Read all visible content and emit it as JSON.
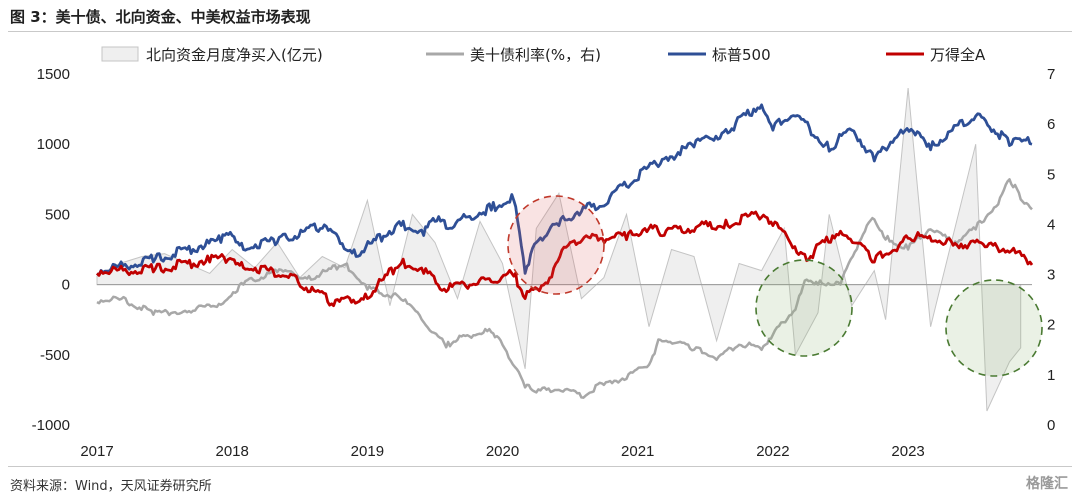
{
  "title": "图 3：美十债、北向资金、中美权益市场表现",
  "source": "资料来源：Wind，天风证券研究所",
  "watermark": "格隆汇",
  "chart_data": {
    "type": "line",
    "legend": {
      "position": "top",
      "items": [
        "北向资金月度净买入(亿元)",
        "美十债利率(%，右)",
        "标普500",
        "万得全A"
      ]
    },
    "x_range": [
      "2017-01",
      "2023-12"
    ],
    "x_ticks": [
      "2017",
      "2018",
      "2019",
      "2020",
      "2021",
      "2022",
      "2023"
    ],
    "y_left": {
      "range": [
        -1000,
        1500
      ],
      "ticks": [
        1500,
        1000,
        500,
        0,
        -500,
        -1000
      ]
    },
    "y_right": {
      "range": [
        0,
        7
      ],
      "ticks": [
        7,
        6,
        5,
        4,
        3,
        2,
        1,
        0
      ]
    },
    "series": [
      {
        "name": "北向资金月度净买入(亿元)",
        "kind": "area",
        "axis": "left",
        "color": "#efefef",
        "stroke": "#c4c4c4",
        "x": [
          "2017-01",
          "2017-03",
          "2017-05",
          "2017-07",
          "2017-09",
          "2017-11",
          "2018-01",
          "2018-03",
          "2018-05",
          "2018-07",
          "2018-09",
          "2018-11",
          "2019-01",
          "2019-03",
          "2019-05",
          "2019-07",
          "2019-09",
          "2019-11",
          "2020-01",
          "2020-03",
          "2020-04",
          "2020-06",
          "2020-08",
          "2020-10",
          "2020-12",
          "2021-02",
          "2021-04",
          "2021-06",
          "2021-08",
          "2021-10",
          "2021-12",
          "2022-02",
          "2022-03",
          "2022-05",
          "2022-06",
          "2022-08",
          "2022-10",
          "2022-11",
          "2023-01",
          "2023-03",
          "2023-05",
          "2023-07",
          "2023-08",
          "2023-10",
          "2023-11"
        ],
        "values": [
          60,
          150,
          200,
          220,
          150,
          80,
          250,
          120,
          300,
          50,
          200,
          120,
          600,
          -150,
          500,
          300,
          -100,
          450,
          150,
          -600,
          400,
          650,
          -100,
          50,
          500,
          -300,
          250,
          200,
          -400,
          150,
          100,
          400,
          -500,
          -200,
          500,
          -150,
          100,
          -250,
          1400,
          -300,
          350,
          1000,
          -900,
          -550,
          -450
        ]
      },
      {
        "name": "美十债利率(%，右)",
        "kind": "line",
        "axis": "right",
        "color": "#a8a8a8",
        "x": [
          "2017-01",
          "2017-03",
          "2017-06",
          "2017-09",
          "2017-12",
          "2018-02",
          "2018-05",
          "2018-08",
          "2018-11",
          "2019-01",
          "2019-04",
          "2019-06",
          "2019-08",
          "2019-09",
          "2019-12",
          "2020-01",
          "2020-03",
          "2020-04",
          "2020-06",
          "2020-08",
          "2020-10",
          "2020-12",
          "2021-02",
          "2021-03",
          "2021-06",
          "2021-08",
          "2021-10",
          "2021-12",
          "2022-01",
          "2022-03",
          "2022-04",
          "2022-05",
          "2022-07",
          "2022-09",
          "2022-10",
          "2022-11",
          "2023-01",
          "2023-03",
          "2023-05",
          "2023-07",
          "2023-09",
          "2023-10",
          "2023-11",
          "2023-12"
        ],
        "values": [
          2.45,
          2.5,
          2.2,
          2.25,
          2.4,
          2.8,
          3.05,
          2.9,
          3.2,
          2.7,
          2.5,
          2.05,
          1.55,
          1.7,
          1.85,
          1.6,
          0.75,
          0.65,
          0.7,
          0.55,
          0.8,
          0.92,
          1.2,
          1.7,
          1.5,
          1.3,
          1.6,
          1.5,
          1.8,
          2.3,
          2.9,
          2.8,
          2.8,
          3.8,
          4.1,
          3.7,
          3.5,
          3.9,
          3.6,
          3.9,
          4.4,
          4.9,
          4.5,
          4.3
        ]
      },
      {
        "name": "标普500",
        "kind": "line",
        "axis": "left",
        "color": "#2e4f96",
        "x": [
          "2017-01",
          "2017-06",
          "2017-12",
          "2018-01",
          "2018-02",
          "2018-05",
          "2018-09",
          "2018-12",
          "2019-04",
          "2019-06",
          "2019-07",
          "2019-08",
          "2019-12",
          "2020-02",
          "2020-03",
          "2020-04",
          "2020-06",
          "2020-08",
          "2020-10",
          "2020-12",
          "2021-03",
          "2021-06",
          "2021-09",
          "2021-12",
          "2022-01",
          "2022-03",
          "2022-06",
          "2022-08",
          "2022-10",
          "2022-12",
          "2023-02",
          "2023-03",
          "2023-07",
          "2023-10",
          "2023-12"
        ],
        "values": [
          80,
          160,
          300,
          350,
          250,
          300,
          400,
          200,
          420,
          350,
          450,
          400,
          530,
          600,
          80,
          300,
          420,
          520,
          560,
          700,
          860,
          980,
          1080,
          1280,
          1100,
          1200,
          950,
          1100,
          880,
          1050,
          1080,
          960,
          1200,
          990,
          1000
        ]
      },
      {
        "name": "万得全A",
        "kind": "line",
        "axis": "left",
        "color": "#c00000",
        "x": [
          "2017-01",
          "2017-06",
          "2017-11",
          "2018-01",
          "2018-02",
          "2018-06",
          "2018-10",
          "2019-01",
          "2019-04",
          "2019-06",
          "2019-08",
          "2019-12",
          "2020-02",
          "2020-03",
          "2020-05",
          "2020-07",
          "2020-12",
          "2021-02",
          "2021-03",
          "2021-09",
          "2021-12",
          "2022-01",
          "2022-04",
          "2022-07",
          "2022-10",
          "2022-12",
          "2023-01",
          "2023-05",
          "2023-08",
          "2023-10",
          "2023-12"
        ],
        "values": [
          80,
          90,
          160,
          180,
          120,
          50,
          -150,
          -100,
          150,
          80,
          -50,
          20,
          60,
          -100,
          10,
          300,
          320,
          400,
          350,
          420,
          480,
          420,
          170,
          380,
          160,
          240,
          330,
          280,
          270,
          230,
          140
        ]
      }
    ]
  }
}
